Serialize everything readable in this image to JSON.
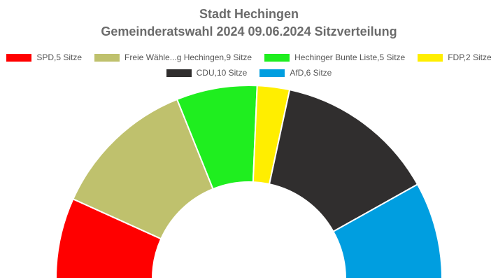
{
  "chart_data": {
    "type": "pie",
    "subtype": "parliament-semicircle",
    "title_line1": "Stadt Hechingen",
    "title_line2": "Gemeinderatswahl 2024 09.06.2024 Sitzverteilung",
    "total_seats": 37,
    "series": [
      {
        "name": "SPD",
        "legend_label": "SPD,5 Sitze",
        "value": 5,
        "color": "#ff0000"
      },
      {
        "name": "Freie Wähler Hechingen",
        "legend_label": "Freie Wähle...g Hechingen,9 Sitze",
        "value": 9,
        "color": "#bfc16d"
      },
      {
        "name": "Hechinger Bunte Liste",
        "legend_label": "Hechinger Bunte Liste,5 Sitze",
        "value": 5,
        "color": "#1fee1f"
      },
      {
        "name": "FDP",
        "legend_label": "FDP,2 Sitze",
        "value": 2,
        "color": "#ffee00"
      },
      {
        "name": "CDU",
        "legend_label": "CDU,10 Sitze",
        "value": 10,
        "color": "#302e2e"
      },
      {
        "name": "AfD",
        "legend_label": "AfD,6 Sitze",
        "value": 6,
        "color": "#009ee0"
      }
    ],
    "legend_position": "top"
  }
}
